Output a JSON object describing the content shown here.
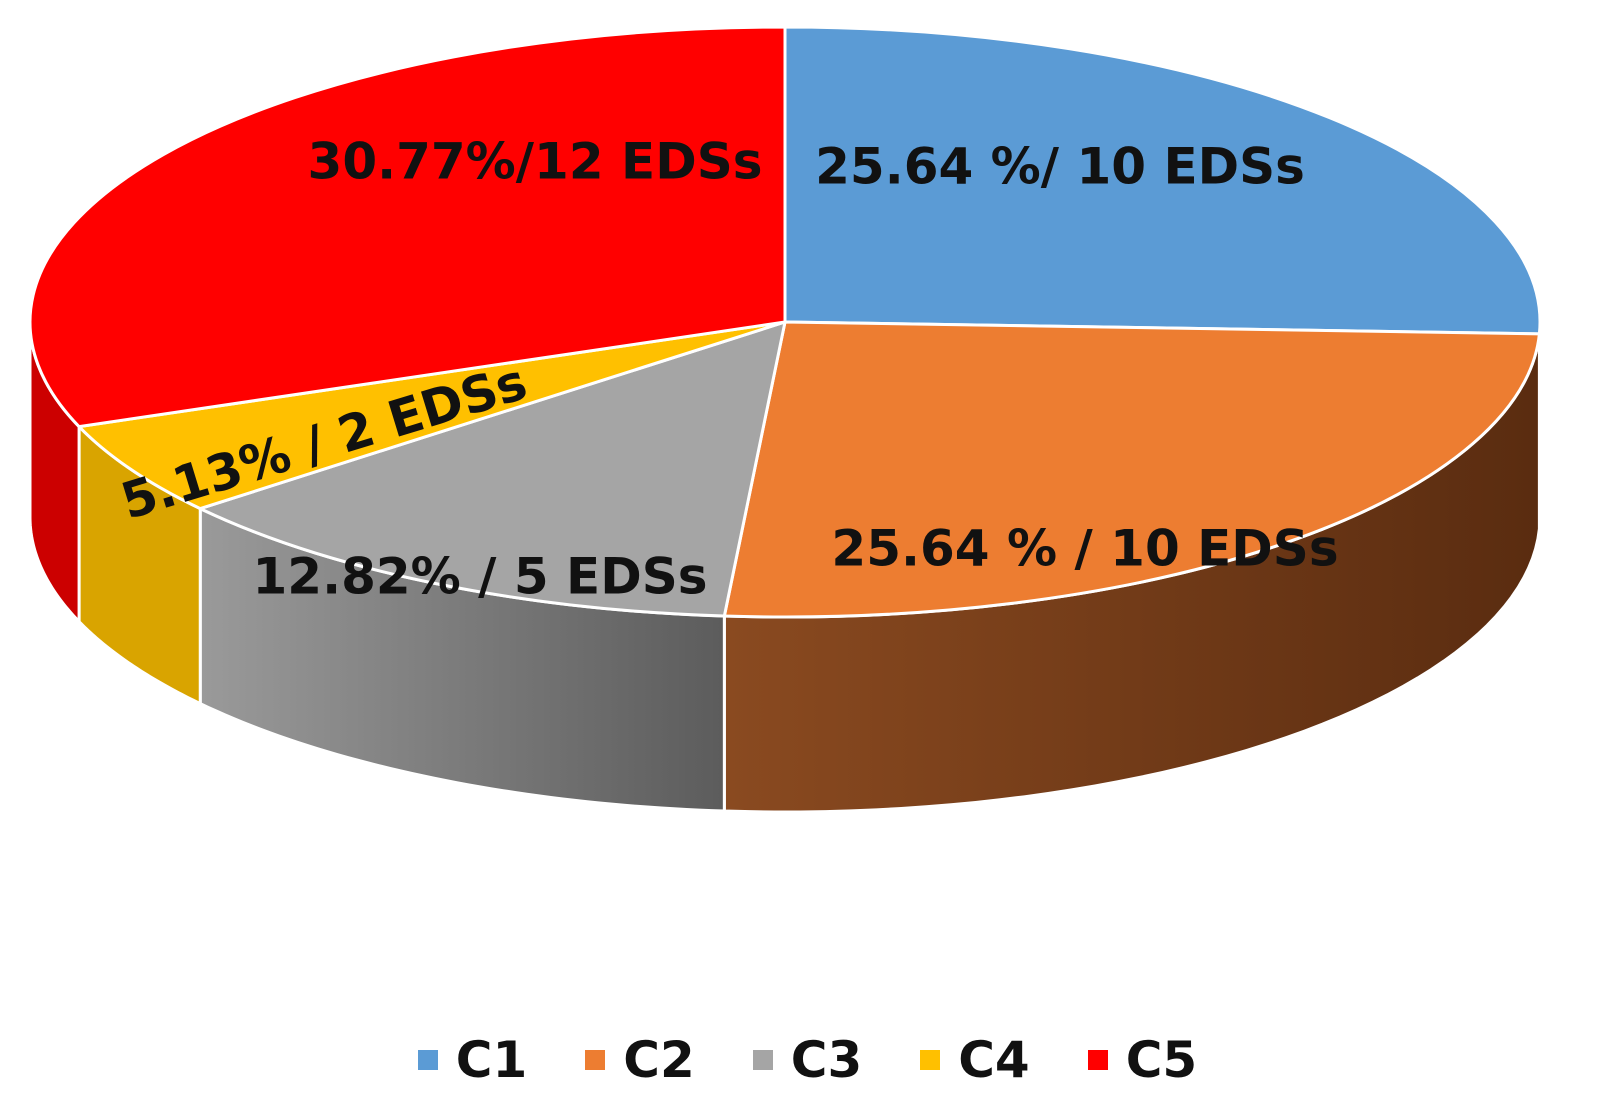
{
  "chart_data": {
    "type": "pie",
    "style": "3d",
    "categories": [
      "C1",
      "C2",
      "C3",
      "C4",
      "C5"
    ],
    "values": [
      25.64,
      25.64,
      12.82,
      5.13,
      30.77
    ],
    "counts": [
      10,
      10,
      5,
      2,
      12
    ],
    "data_labels": [
      "25.64 %/ 10 EDSs",
      "25.64 % / 10 EDSs",
      "12.82% / 5 EDSs",
      "5.13% / 2 EDSs",
      "30.77%/12 EDSs"
    ],
    "colors": [
      "#5b9bd5",
      "#ed7d31",
      "#a5a5a5",
      "#ffc000",
      "#ff0000"
    ],
    "side_colors": [
      "#2e5f8f",
      "#6b3514",
      "#666666",
      "#d9a400",
      "#cc0000"
    ],
    "legend_position": "bottom",
    "start_angle_deg": 0,
    "direction": "clockwise",
    "title": ""
  }
}
